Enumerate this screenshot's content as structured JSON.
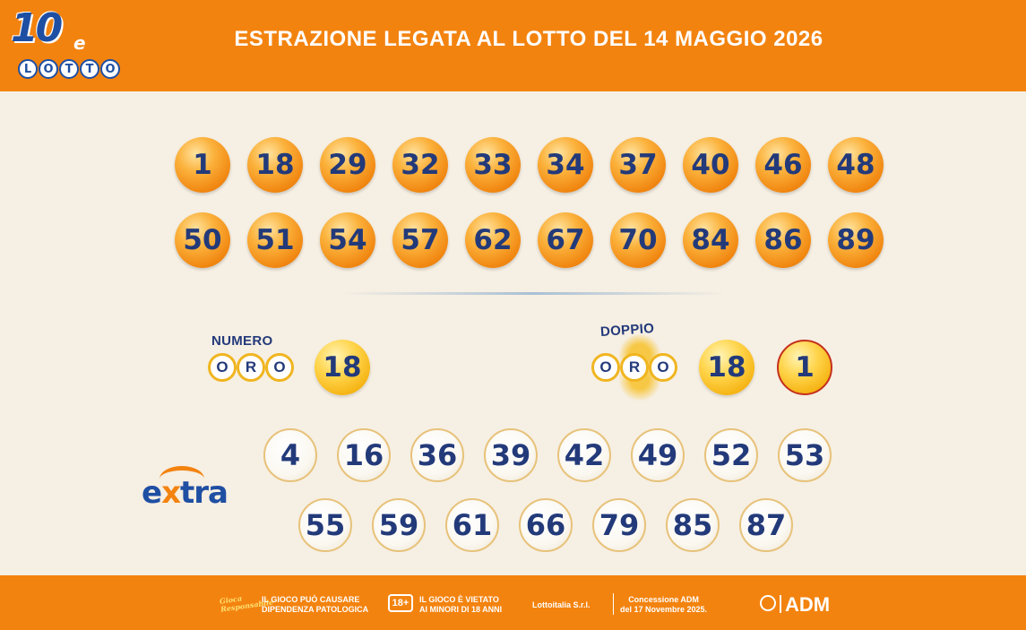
{
  "header": {
    "logo": {
      "number": "10",
      "e": "e",
      "lotto_letters": [
        "L",
        "O",
        "T",
        "T",
        "O"
      ]
    },
    "title": "ESTRAZIONE LEGATA AL LOTTO DEL 14 MAGGIO 2026"
  },
  "main_numbers": [
    "1",
    "18",
    "29",
    "32",
    "33",
    "34",
    "37",
    "40",
    "46",
    "48",
    "50",
    "51",
    "54",
    "57",
    "62",
    "67",
    "70",
    "84",
    "86",
    "89"
  ],
  "numero_oro": {
    "label": "NUMERO",
    "oro_letters": [
      "O",
      "R",
      "O"
    ],
    "value": "18"
  },
  "doppio_oro": {
    "label": "DOPPIO",
    "oro_letters": [
      "O",
      "R",
      "O"
    ],
    "values": [
      "18",
      "1"
    ]
  },
  "extra": {
    "logo": {
      "e": "e",
      "x": "x",
      "tra": "tra"
    },
    "numbers": [
      "4",
      "16",
      "36",
      "39",
      "42",
      "49",
      "52",
      "53",
      "55",
      "59",
      "61",
      "66",
      "79",
      "85",
      "87"
    ]
  },
  "footer": {
    "gioco_logo": "Gioca Responsabile",
    "warning_1_line1": "IL GIOCO PUÒ CAUSARE",
    "warning_1_line2": "DIPENDENZA PATOLOGICA",
    "age_badge": "18+",
    "warning_2_line1": "IL GIOCO È VIETATO",
    "warning_2_line2": "AI MINORI DI 18 ANNI",
    "company": "Lottoitalia S.r.l.",
    "concession_line1": "Concessione ADM",
    "concession_line2": "del 17 Novembre 2025.",
    "adm": "ADM"
  },
  "colors": {
    "orange": "#f3830f",
    "navy": "#233a7a",
    "background": "#f6efe3"
  }
}
